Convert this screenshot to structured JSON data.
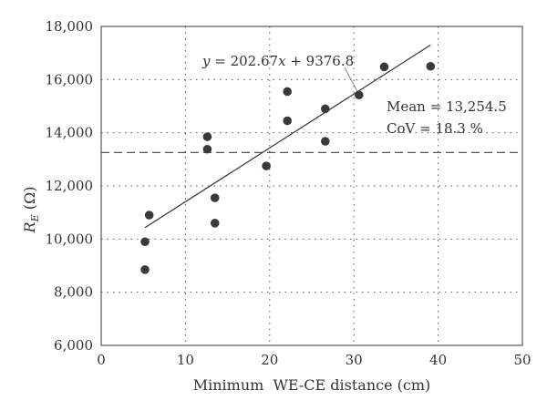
{
  "chart_data": {
    "type": "scatter",
    "xlabel": "Minimum  WE-CE distance (cm)",
    "ylabel_main": "R",
    "ylabel_sub": "E",
    "ylabel_unit": " (Ω)",
    "xlim": [
      0,
      50
    ],
    "ylim": [
      6000,
      18000
    ],
    "x_ticks": [
      0,
      10,
      20,
      30,
      40,
      50
    ],
    "y_ticks": [
      6000,
      8000,
      10000,
      12000,
      14000,
      16000,
      18000
    ],
    "x_tick_labels": [
      "0",
      "10",
      "20",
      "30",
      "40",
      "50"
    ],
    "y_tick_labels": [
      "6,000",
      "8,000",
      "10,000",
      "12,000",
      "14,000",
      "16,000",
      "18,000"
    ],
    "grid": "dotted",
    "points": [
      {
        "x": 5.2,
        "y": 8850
      },
      {
        "x": 5.2,
        "y": 9900
      },
      {
        "x": 5.7,
        "y": 10900
      },
      {
        "x": 12.6,
        "y": 13850
      },
      {
        "x": 12.6,
        "y": 13380
      },
      {
        "x": 13.5,
        "y": 11550
      },
      {
        "x": 13.5,
        "y": 10600
      },
      {
        "x": 19.6,
        "y": 12750
      },
      {
        "x": 22.1,
        "y": 15550
      },
      {
        "x": 22.1,
        "y": 14450
      },
      {
        "x": 26.6,
        "y": 14900
      },
      {
        "x": 26.6,
        "y": 13680
      },
      {
        "x": 30.6,
        "y": 15420
      },
      {
        "x": 33.6,
        "y": 16480
      },
      {
        "x": 39.1,
        "y": 16500
      }
    ],
    "trendline": {
      "slope": 202.67,
      "intercept": 9376.8,
      "x_start": 5.2,
      "x_end": 39.1,
      "equation_prefix": "y",
      "equation_middle": " = 202.67",
      "equation_var": "x",
      "equation_suffix": " + 9376.8"
    },
    "mean_line": {
      "value": 13254.5,
      "label_mean": "Mean = 13,254.5",
      "label_cov": "CoV = 18.3 %"
    }
  }
}
